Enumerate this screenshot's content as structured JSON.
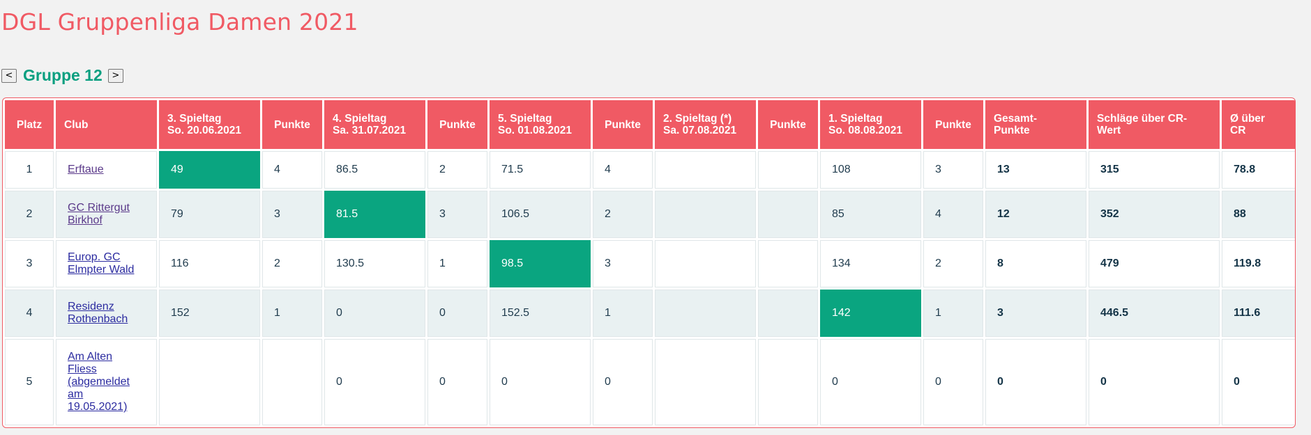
{
  "page": {
    "title": "DGL Gruppenliga Damen 2021"
  },
  "group_nav": {
    "prev_label": "<",
    "next_label": ">",
    "title": "Gruppe 12"
  },
  "table": {
    "headers": {
      "platz": "Platz",
      "club": "Club",
      "st3_line1": "3. Spieltag",
      "st3_line2": "So. 20.06.2021",
      "p1": "Punkte",
      "st4_line1": "4. Spieltag",
      "st4_line2": "Sa. 31.07.2021",
      "p2": "Punkte",
      "st5_line1": "5. Spieltag",
      "st5_line2": "So. 01.08.2021",
      "p3": "Punkte",
      "st2_line1": "2. Spieltag (*)",
      "st2_line2": "Sa. 07.08.2021",
      "p4": "Punkte",
      "st1_line1": "1. Spieltag",
      "st1_line2": "So. 08.08.2021",
      "p5": "Punkte",
      "gesamt_line1": "Gesamt-",
      "gesamt_line2": "Punkte",
      "schlaege_line1": "Schläge über CR-",
      "schlaege_line2": "Wert",
      "avg_line1": "Ø über",
      "avg_line2": "CR"
    },
    "rows": [
      {
        "platz": "1",
        "club_line1": "Erftaue",
        "club_line2": "",
        "club_line3": "",
        "club_line4": "",
        "club_line5": "",
        "st3": "49",
        "p3": "4",
        "st4": "86.5",
        "p4": "2",
        "st5": "71.5",
        "p5": "4",
        "st2": "",
        "p2": "",
        "st1": "108",
        "p1": "3",
        "gesamt": "13",
        "schlaege": "315",
        "avg": "78.8"
      },
      {
        "platz": "2",
        "club_line1": "GC Rittergut",
        "club_line2": "Birkhof",
        "club_line3": "",
        "club_line4": "",
        "club_line5": "",
        "st3": "79",
        "p3": "3",
        "st4": "81.5",
        "p4": "3",
        "st5": "106.5",
        "p5": "2",
        "st2": "",
        "p2": "",
        "st1": "85",
        "p1": "4",
        "gesamt": "12",
        "schlaege": "352",
        "avg": "88"
      },
      {
        "platz": "3",
        "club_line1": "Europ. GC",
        "club_line2": "Elmpter Wald",
        "club_line3": "",
        "club_line4": "",
        "club_line5": "",
        "st3": "116",
        "p3": "2",
        "st4": "130.5",
        "p4": "1",
        "st5": "98.5",
        "p5": "3",
        "st2": "",
        "p2": "",
        "st1": "134",
        "p1": "2",
        "gesamt": "8",
        "schlaege": "479",
        "avg": "119.8"
      },
      {
        "platz": "4",
        "club_line1": "Residenz",
        "club_line2": "Rothenbach",
        "club_line3": "",
        "club_line4": "",
        "club_line5": "",
        "st3": "152",
        "p3": "1",
        "st4": "0",
        "p4": "0",
        "st5": "152.5",
        "p5": "1",
        "st2": "",
        "p2": "",
        "st1": "142",
        "p1": "1",
        "gesamt": "3",
        "schlaege": "446.5",
        "avg": "111.6"
      },
      {
        "platz": "5",
        "club_line1": "Am Alten",
        "club_line2": "Fliess",
        "club_line3": "(abgemeldet",
        "club_line4": "am",
        "club_line5": "19.05.2021)",
        "st3": "",
        "p3": "",
        "st4": "0",
        "p4": "0",
        "st5": "0",
        "p5": "0",
        "st2": "",
        "p2": "",
        "st1": "0",
        "p1": "0",
        "gesamt": "0",
        "schlaege": "0",
        "avg": "0"
      }
    ]
  },
  "colors": {
    "accent": "#f05a64",
    "best": "#0aa580",
    "group_title": "#0a9f80",
    "alt_row": "#e9f1f2"
  }
}
